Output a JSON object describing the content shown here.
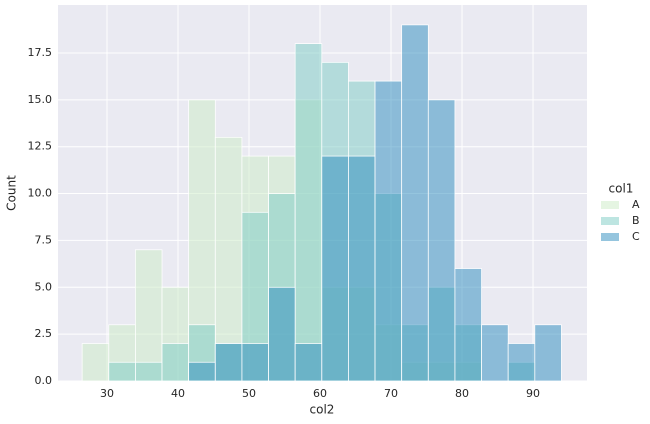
{
  "chart_data": {
    "type": "histogram",
    "x_label": "col2",
    "y_label": "Count",
    "legend_title": "col1",
    "legend_position": "right",
    "grid": true,
    "bins": [
      26.5,
      30.25,
      34,
      37.75,
      41.5,
      45.25,
      49,
      52.75,
      56.5,
      60.25,
      64,
      67.75,
      71.5,
      75.25,
      79,
      82.75,
      86.5,
      90.25,
      94
    ],
    "series": [
      {
        "name": "A",
        "color": "#ccebc5",
        "values": [
          2,
          3,
          7,
          5,
          15,
          13,
          12,
          12,
          15,
          5,
          5,
          3,
          1,
          1,
          1,
          0,
          0,
          0
        ]
      },
      {
        "name": "B",
        "color": "#7bccc4",
        "values": [
          0,
          1,
          1,
          2,
          3,
          2,
          9,
          10,
          18,
          17,
          16,
          10,
          3,
          5,
          3,
          0,
          1,
          0
        ]
      },
      {
        "name": "C",
        "color": "#2b8cbe",
        "values": [
          0,
          0,
          0,
          0,
          1,
          2,
          2,
          5,
          2,
          12,
          12,
          16,
          19,
          15,
          6,
          3,
          2,
          3
        ]
      }
    ],
    "xlim": [
      23.1,
      97.6
    ],
    "xticks": [
      30,
      40,
      50,
      60,
      70,
      80,
      90
    ],
    "ylim": [
      0,
      20.06
    ],
    "yticks": [
      {
        "value": 0,
        "label": "0.0"
      },
      2.5,
      {
        "value": 5,
        "label": "5.0"
      },
      7.5,
      {
        "value": 10,
        "label": "10.0"
      },
      12.5,
      {
        "value": 15,
        "label": "15.0"
      },
      17.5
    ]
  }
}
